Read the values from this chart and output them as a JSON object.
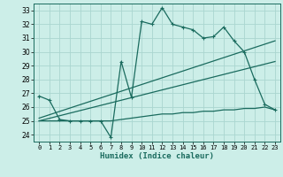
{
  "xlabel": "Humidex (Indice chaleur)",
  "bg_color": "#cceee8",
  "grid_color": "#aad6d0",
  "line_color": "#1a6b5e",
  "x_ticks": [
    0,
    1,
    2,
    3,
    4,
    5,
    6,
    7,
    8,
    9,
    10,
    11,
    12,
    13,
    14,
    15,
    16,
    17,
    18,
    19,
    20,
    21,
    22,
    23
  ],
  "y_ticks": [
    24,
    25,
    26,
    27,
    28,
    29,
    30,
    31,
    32,
    33
  ],
  "ylim": [
    23.5,
    33.5
  ],
  "xlim": [
    -0.5,
    23.5
  ],
  "series1_x": [
    0,
    1,
    2,
    3,
    4,
    5,
    6,
    7,
    8,
    9,
    10,
    11,
    12,
    13,
    14,
    15,
    16,
    17,
    18,
    19,
    20,
    21,
    22,
    23
  ],
  "series1_y": [
    26.8,
    26.5,
    25.1,
    25.0,
    25.0,
    25.0,
    25.0,
    23.8,
    29.3,
    26.7,
    32.2,
    32.0,
    33.2,
    32.0,
    31.8,
    31.6,
    31.0,
    31.1,
    31.8,
    30.8,
    30.0,
    28.0,
    26.2,
    25.8
  ],
  "series2_x": [
    0,
    1,
    2,
    3,
    4,
    5,
    6,
    7,
    8,
    9,
    10,
    11,
    12,
    13,
    14,
    15,
    16,
    17,
    18,
    19,
    20,
    21,
    22,
    23
  ],
  "series2_y": [
    25.0,
    25.0,
    25.0,
    25.0,
    25.0,
    25.0,
    25.0,
    25.0,
    25.1,
    25.2,
    25.3,
    25.4,
    25.5,
    25.5,
    25.6,
    25.6,
    25.7,
    25.7,
    25.8,
    25.8,
    25.9,
    25.9,
    26.0,
    25.8
  ],
  "series3_x": [
    0,
    23
  ],
  "series3_y": [
    25.2,
    30.8
  ],
  "series4_x": [
    0,
    23
  ],
  "series4_y": [
    25.0,
    29.3
  ]
}
